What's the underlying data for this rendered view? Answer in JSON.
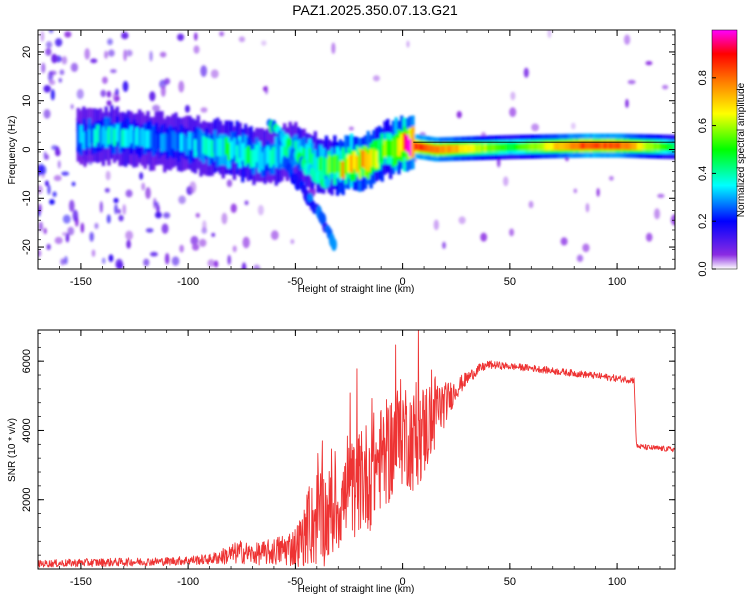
{
  "title": "PAZ1.2025.350.07.13.G21",
  "colors": {
    "snr_line": "#ee3333",
    "background": "#ffffff",
    "axis": "#000000"
  },
  "chart_data": [
    {
      "type": "heatmap",
      "title": "PAZ1.2025.350.07.13.G21",
      "xlabel": "Height of straight line (km)",
      "ylabel": "Frequency (Hz)",
      "xlim": [
        -170,
        127
      ],
      "ylim": [
        -24.5,
        24.5
      ],
      "xticks": [
        -150,
        -100,
        -50,
        0,
        50,
        100
      ],
      "yticks": [
        -20,
        -10,
        0,
        10,
        20
      ],
      "xtick_labels": [
        "-150",
        "-100",
        "-50",
        "0",
        "50",
        "100"
      ],
      "ytick_labels": [
        "-20",
        "-10",
        "0",
        "10",
        "20"
      ],
      "colorbar": {
        "label": "Normalized spectral amplitude",
        "range": [
          0,
          1
        ],
        "ticks": [
          0.0,
          0.2,
          0.4,
          0.6,
          0.8
        ],
        "tick_labels": [
          "0.0",
          "0.2",
          "0.4",
          "0.6",
          "0.8"
        ],
        "colormap": [
          "#ffffff",
          "#7f00ff",
          "#0000ff",
          "#00ffff",
          "#00ff00",
          "#ffff00",
          "#ff8000",
          "#ff0000",
          "#ff00ff"
        ]
      },
      "ridge": [
        {
          "x": -150,
          "y": 2.5,
          "amp": 0.3
        },
        {
          "x": -135,
          "y": 3,
          "amp": 0.35
        },
        {
          "x": -120,
          "y": 2,
          "amp": 0.3
        },
        {
          "x": -100,
          "y": 1,
          "amp": 0.3
        },
        {
          "x": -80,
          "y": 0,
          "amp": 0.45
        },
        {
          "x": -65,
          "y": -2,
          "amp": 0.4
        },
        {
          "x": -50,
          "y": 0,
          "amp": 0.35
        },
        {
          "x": -40,
          "y": -3,
          "amp": 0.45
        },
        {
          "x": -30,
          "y": -3.5,
          "amp": 0.55
        },
        {
          "x": -25,
          "y": -3,
          "amp": 0.9
        },
        {
          "x": -15,
          "y": -2,
          "amp": 0.6
        },
        {
          "x": -8,
          "y": 0,
          "amp": 0.55
        },
        {
          "x": 0,
          "y": 1,
          "amp": 0.95
        },
        {
          "x": 15,
          "y": 0,
          "amp": 0.85
        },
        {
          "x": 50,
          "y": 0.5,
          "amp": 0.5
        },
        {
          "x": 85,
          "y": 0.8,
          "amp": 0.9
        },
        {
          "x": 100,
          "y": 0.8,
          "amp": 0.85
        },
        {
          "x": 127,
          "y": 0.5,
          "amp": 0.45
        }
      ],
      "branches": [
        {
          "points": [
            {
              "x": -62,
              "y": 5.5
            },
            {
              "x": -55,
              "y": 2
            },
            {
              "x": -50,
              "y": -1
            },
            {
              "x": -42,
              "y": -5
            },
            {
              "x": -35,
              "y": -7
            }
          ],
          "amp": 0.4
        },
        {
          "points": [
            {
              "x": -55,
              "y": -3
            },
            {
              "x": -45,
              "y": -9
            },
            {
              "x": -38,
              "y": -14
            },
            {
              "x": -32,
              "y": -19
            }
          ],
          "amp": 0.25
        }
      ]
    },
    {
      "type": "line",
      "xlabel": "Height of straight line (km)",
      "ylabel": "SNR (10 * v/v)",
      "xlim": [
        -170,
        127
      ],
      "ylim": [
        0,
        6900
      ],
      "xticks": [
        -150,
        -100,
        -50,
        0,
        50,
        100
      ],
      "yticks": [
        2000,
        4000,
        6000
      ],
      "xtick_labels": [
        "-150",
        "-100",
        "-50",
        "0",
        "50",
        "100"
      ],
      "ytick_labels": [
        "2000",
        "4000",
        "6000"
      ],
      "series": [
        {
          "name": "SNR",
          "envelope": {
            "x": [
              -170,
              -150,
              -130,
              -110,
              -90,
              -80,
              -75,
              -70,
              -60,
              -50,
              -45,
              -40,
              -35,
              -30,
              -25,
              -20,
              -15,
              -10,
              -5,
              0,
              5,
              10,
              15,
              20,
              25,
              30,
              35,
              40,
              50,
              60,
              70,
              80,
              90,
              100,
              108,
              109,
              115,
              127
            ],
            "mean": [
              150,
              180,
              200,
              220,
              280,
              420,
              500,
              420,
              500,
              650,
              1000,
              1500,
              1500,
              1800,
              2200,
              2500,
              2800,
              3200,
              3500,
              4000,
              3700,
              4000,
              4500,
              4800,
              5200,
              5500,
              5750,
              5900,
              5850,
              5800,
              5720,
              5650,
              5580,
              5500,
              5450,
              3550,
              3500,
              3450
            ],
            "noise": [
              100,
              120,
              120,
              120,
              150,
              300,
              350,
              300,
              400,
              600,
              900,
              1500,
              1400,
              1300,
              1400,
              1500,
              1700,
              1500,
              1600,
              1600,
              1500,
              1400,
              1200,
              600,
              300,
              200,
              150,
              120,
              100,
              100,
              100,
              100,
              100,
              100,
              100,
              80,
              80,
              80
            ]
          }
        }
      ]
    }
  ]
}
